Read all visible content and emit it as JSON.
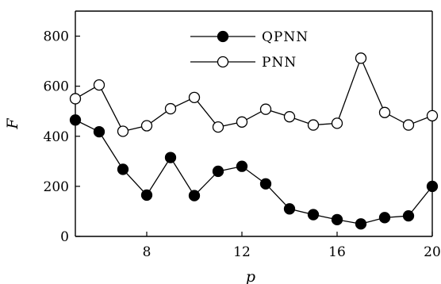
{
  "chart_data": {
    "type": "line",
    "xlabel": "p",
    "ylabel": "F",
    "xlim": [
      5,
      20
    ],
    "ylim": [
      0,
      900
    ],
    "x_ticks": [
      8,
      12,
      16,
      20
    ],
    "y_ticks": [
      0,
      200,
      400,
      600,
      800
    ],
    "grid": false,
    "legend_position": "top-center",
    "x": [
      5,
      6,
      7,
      8,
      9,
      10,
      11,
      12,
      13,
      14,
      15,
      16,
      17,
      18,
      19,
      20
    ],
    "series": [
      {
        "name": "QPNN",
        "marker": "filled-circle",
        "color": "#000000",
        "values": [
          465,
          418,
          268,
          165,
          315,
          163,
          260,
          280,
          210,
          110,
          87,
          67,
          50,
          75,
          82,
          200
        ]
      },
      {
        "name": "PNN",
        "marker": "open-circle",
        "color": "#000000",
        "values": [
          550,
          605,
          420,
          442,
          510,
          555,
          437,
          457,
          508,
          478,
          445,
          452,
          712,
          495,
          445,
          482
        ]
      }
    ]
  }
}
